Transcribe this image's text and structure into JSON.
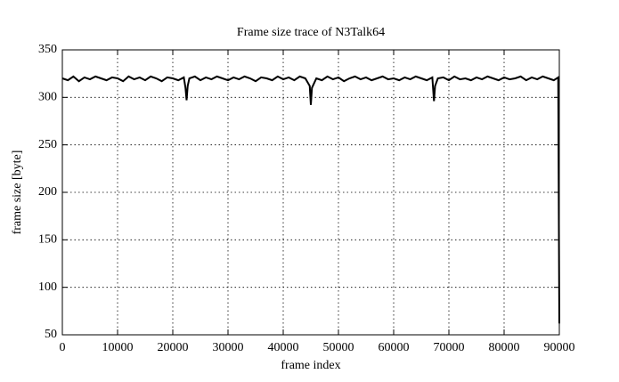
{
  "chart_data": {
    "type": "line",
    "title": "Frame size trace of N3Talk64",
    "x_label": "frame index",
    "y_label": "frame size [byte]",
    "x": [
      0,
      1000,
      2000,
      3000,
      4000,
      5000,
      6000,
      7000,
      8000,
      9000,
      10000,
      11000,
      12000,
      13000,
      14000,
      15000,
      16000,
      17000,
      18000,
      19000,
      20000,
      21000,
      22000,
      22300,
      22500,
      22700,
      23000,
      24000,
      25000,
      26000,
      27000,
      28000,
      29000,
      30000,
      31000,
      32000,
      33000,
      34000,
      35000,
      36000,
      37000,
      38000,
      39000,
      40000,
      41000,
      42000,
      43000,
      44000,
      44800,
      45000,
      45200,
      46000,
      47000,
      48000,
      49000,
      50000,
      51000,
      52000,
      53000,
      54000,
      55000,
      56000,
      57000,
      58000,
      59000,
      60000,
      61000,
      62000,
      63000,
      64000,
      65000,
      66000,
      67000,
      67300,
      67500,
      68000,
      69000,
      70000,
      71000,
      72000,
      73000,
      74000,
      75000,
      76000,
      77000,
      78000,
      79000,
      80000,
      81000,
      82000,
      83000,
      84000,
      85000,
      86000,
      87000,
      88000,
      89000,
      89800,
      90000
    ],
    "values": [
      320,
      318,
      322,
      317,
      321,
      319,
      322,
      320,
      318,
      321,
      320,
      317,
      322,
      319,
      321,
      318,
      322,
      320,
      317,
      321,
      320,
      318,
      321,
      310,
      297,
      312,
      320,
      322,
      318,
      321,
      319,
      322,
      320,
      318,
      321,
      319,
      322,
      320,
      317,
      321,
      320,
      318,
      322,
      319,
      321,
      318,
      322,
      320,
      312,
      292,
      310,
      320,
      318,
      322,
      319,
      321,
      317,
      320,
      322,
      319,
      321,
      318,
      320,
      322,
      319,
      320,
      318,
      321,
      319,
      322,
      320,
      318,
      321,
      296,
      312,
      320,
      321,
      318,
      322,
      319,
      320,
      318,
      321,
      319,
      322,
      320,
      318,
      321,
      319,
      320,
      322,
      318,
      321,
      319,
      322,
      320,
      318,
      321,
      62
    ],
    "color": "#000000",
    "xlim": [
      0,
      90000
    ],
    "ylim": [
      50,
      350
    ],
    "xticks": [
      0,
      10000,
      20000,
      30000,
      40000,
      50000,
      60000,
      70000,
      80000,
      90000
    ],
    "yticks": [
      50,
      100,
      150,
      200,
      250,
      300,
      350
    ],
    "grid": true
  }
}
